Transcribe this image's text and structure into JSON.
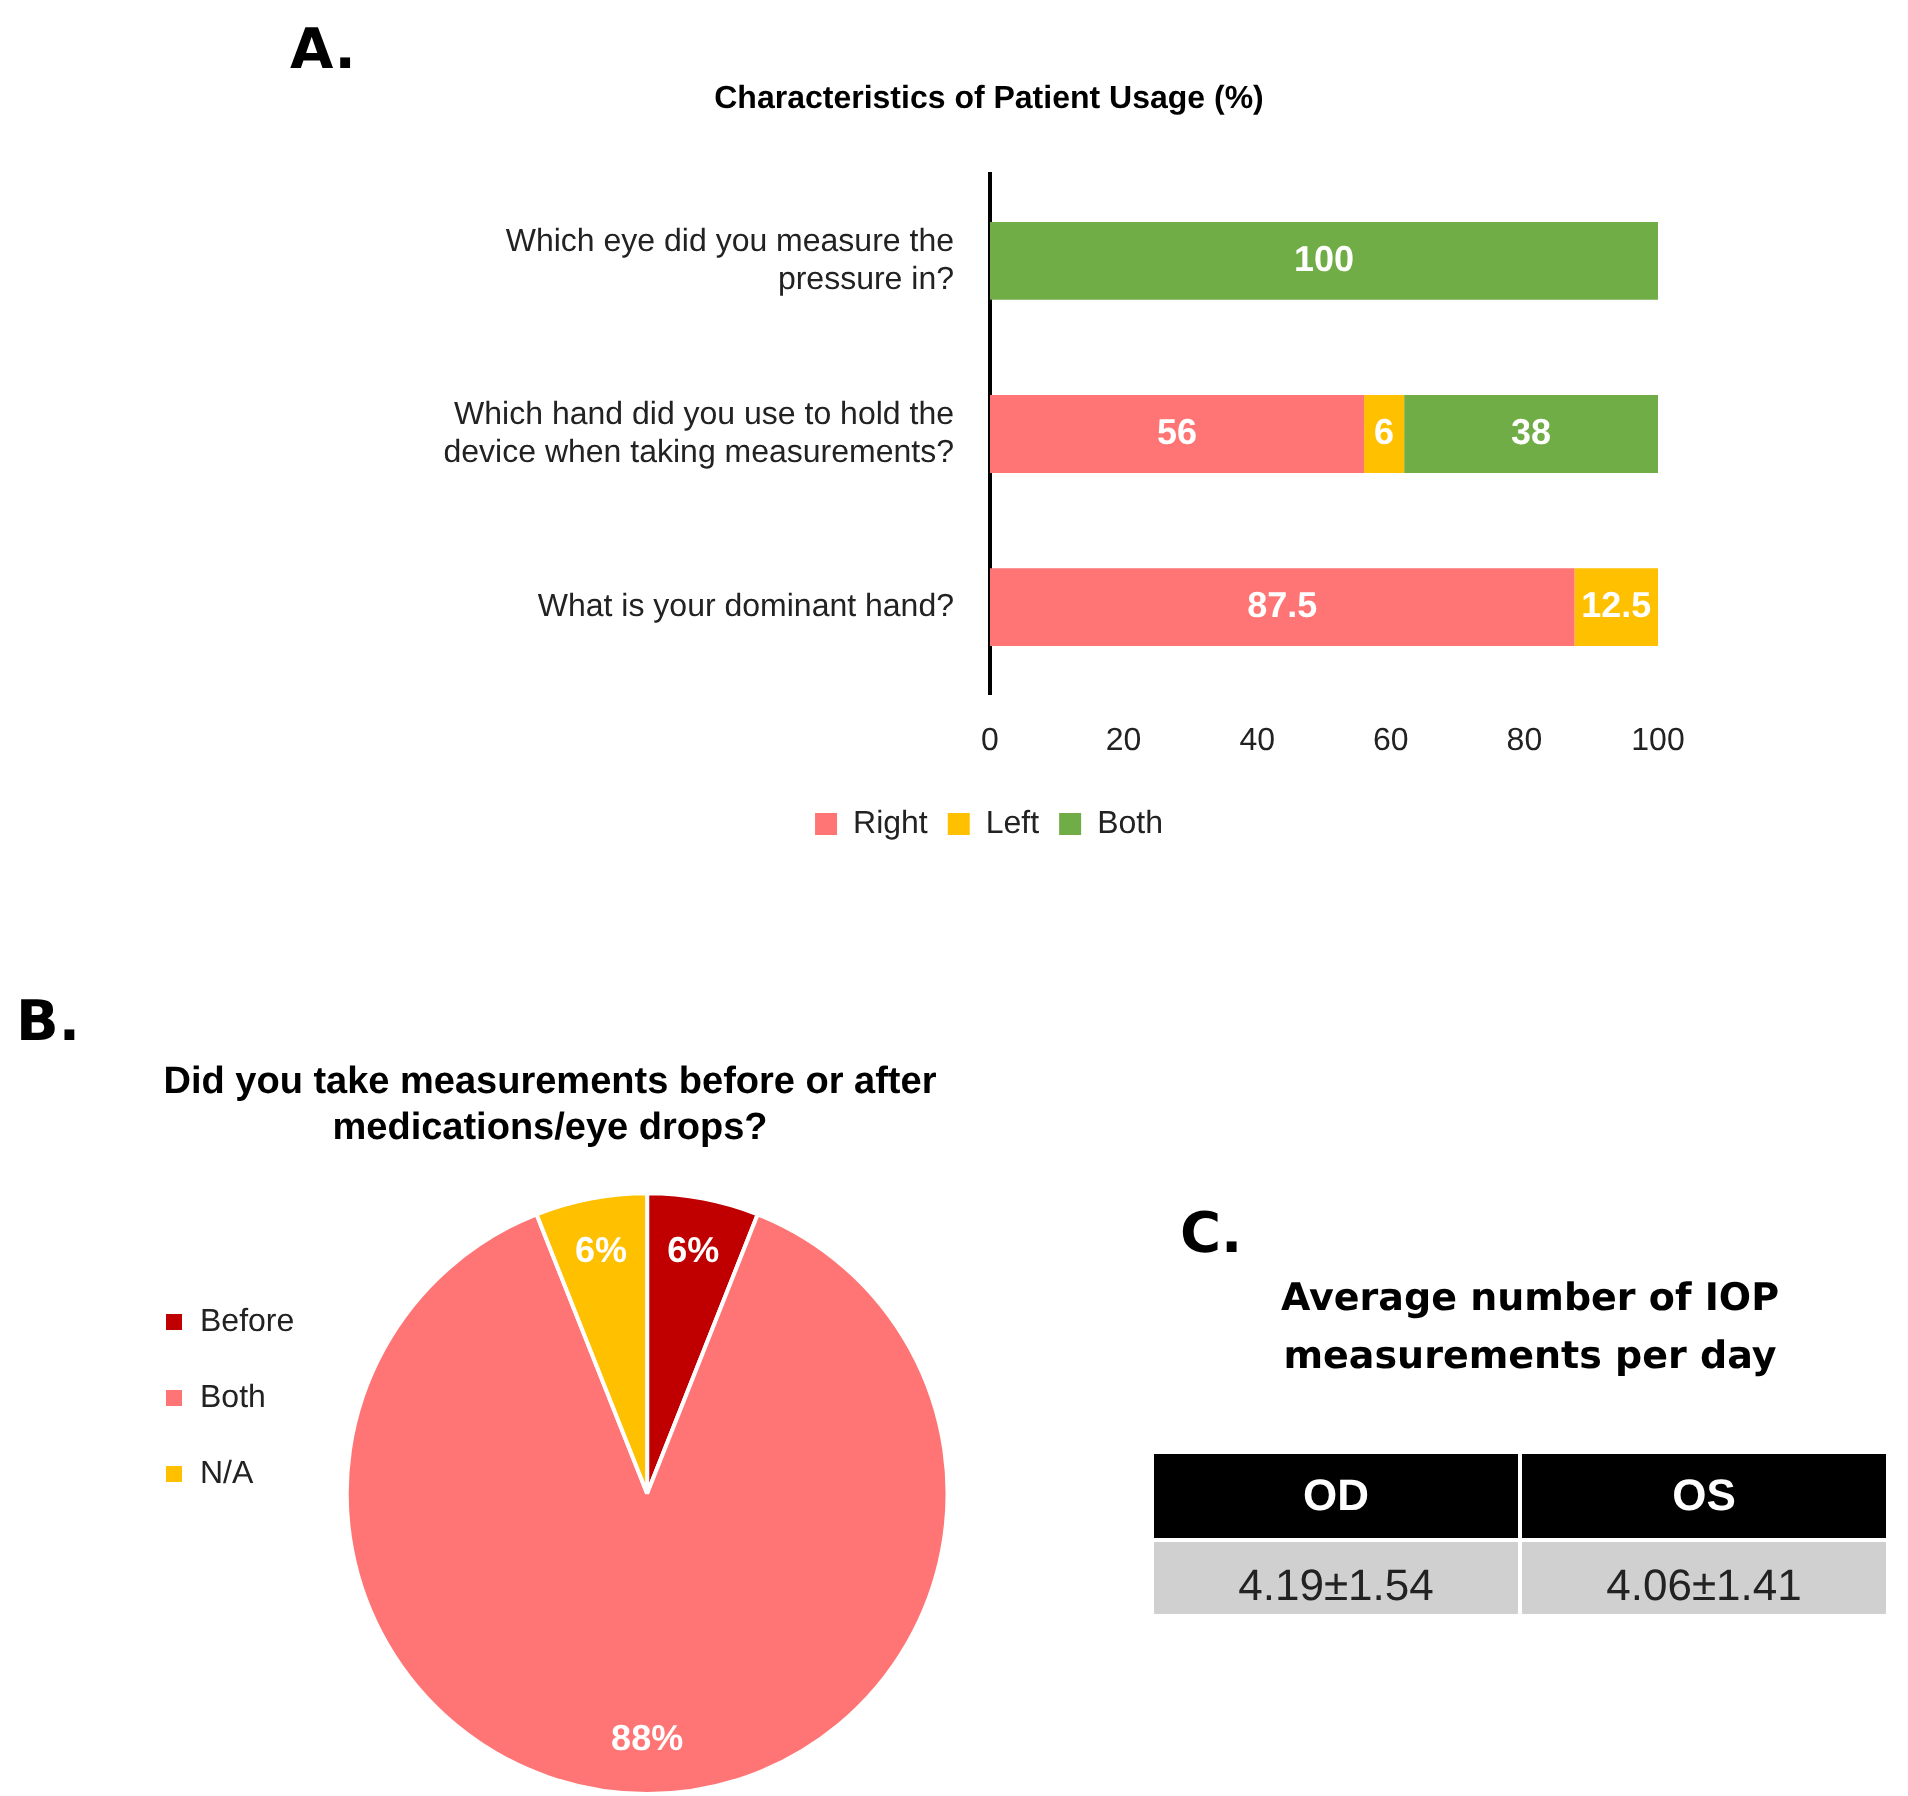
{
  "chart_data": [
    {
      "type": "bar",
      "title": "Characteristics of Patient Usage (%)",
      "annotations": [
        "A."
      ],
      "orientation": "horizontal",
      "stacked": true,
      "categories": [
        "Which eye did you measure the pressure in?",
        "Which hand did you use to hold the device when taking measurements?",
        "What is your dominant hand?"
      ],
      "series": [
        {
          "name": "Right",
          "color": "#ff7575",
          "values": [
            null,
            56,
            87.5
          ]
        },
        {
          "name": "Left",
          "color": "#ffc000",
          "values": [
            null,
            6,
            12.5
          ]
        },
        {
          "name": "Both",
          "color": "#70ad47",
          "values": [
            100,
            38,
            null
          ]
        }
      ],
      "xlim": [
        0,
        100
      ],
      "xticks": [
        0,
        20,
        40,
        60,
        80,
        100
      ],
      "data_labels": true,
      "legend": "bottom"
    },
    {
      "type": "pie",
      "title": "Did you take measurements before or after medications/eye drops?",
      "annotations": [
        "B."
      ],
      "categories": [
        "Before",
        "Both",
        "N/A"
      ],
      "values": [
        6,
        88,
        6
      ],
      "colors": [
        "#c00000",
        "#ff7575",
        "#ffc000"
      ],
      "value_labels": [
        "6%",
        "88%",
        "6%"
      ],
      "legend": "left"
    },
    {
      "type": "other",
      "title": "Average number of IOP measurements per day",
      "annotations": [
        "C."
      ],
      "categories": [
        "OD",
        "OS"
      ],
      "value_labels": [
        "4.19±1.54",
        "4.06±1.41"
      ]
    }
  ]
}
